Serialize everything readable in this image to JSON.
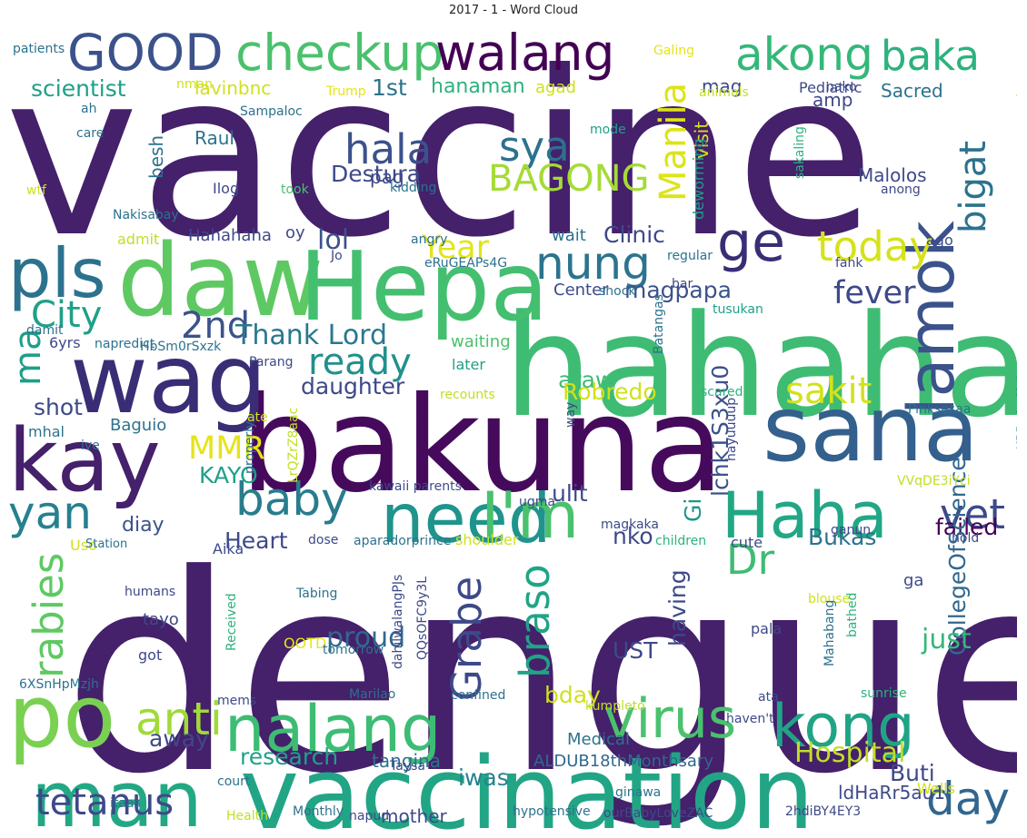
{
  "chart_data": {
    "type": "wordcloud",
    "title": "2017 - 1 - Word Cloud",
    "colormap": "viridis",
    "background": "#ffffff",
    "words": [
      {
        "text": "vaccine",
        "color": "#45206b"
      },
      {
        "text": "dengue",
        "color": "#45206b"
      },
      {
        "text": "hahaha",
        "color": "#3fbc73"
      },
      {
        "text": "bakuna",
        "color": "#460a5d"
      },
      {
        "text": "vaccination",
        "color": "#21a585"
      },
      {
        "text": "daw",
        "color": "#5ec962"
      },
      {
        "text": "Hepa",
        "color": "#44bf70"
      },
      {
        "text": "wag",
        "color": "#3a2d75"
      },
      {
        "text": "sana",
        "color": "#34608d"
      },
      {
        "text": "kay",
        "color": "#45206b"
      },
      {
        "text": "po",
        "color": "#7ad151"
      },
      {
        "text": "man",
        "color": "#22a884"
      },
      {
        "text": "pls",
        "color": "#2c728e"
      },
      {
        "text": "need",
        "color": "#1f948c"
      },
      {
        "text": "I'm",
        "color": "#4ac16d"
      },
      {
        "text": "Haha",
        "color": "#22a785"
      },
      {
        "text": "nalang",
        "color": "#3dbc74"
      },
      {
        "text": "kong",
        "color": "#20a486"
      },
      {
        "text": "virus",
        "color": "#4ac16d"
      },
      {
        "text": "lamok",
        "color": "#3b528b"
      },
      {
        "text": "GOOD",
        "color": "#3b528b"
      },
      {
        "text": "checkup",
        "color": "#4ac16d"
      },
      {
        "text": "walang",
        "color": "#440154"
      },
      {
        "text": "akong",
        "color": "#35b779"
      },
      {
        "text": "baka",
        "color": "#2db27d"
      },
      {
        "text": "ge",
        "color": "#3a2d75"
      },
      {
        "text": "nung",
        "color": "#2c738e"
      },
      {
        "text": "today",
        "color": "#d5e21a"
      },
      {
        "text": "baby",
        "color": "#287c8e"
      },
      {
        "text": "yan",
        "color": "#26818e"
      },
      {
        "text": "anti",
        "color": "#a0da39"
      },
      {
        "text": "tetanus",
        "color": "#3e4989"
      },
      {
        "text": "day",
        "color": "#31668e"
      },
      {
        "text": "rabies",
        "color": "#5ec962"
      },
      {
        "text": "braso",
        "color": "#20a486"
      },
      {
        "text": "Grabe",
        "color": "#3e4989"
      },
      {
        "text": "Dr",
        "color": "#3fbc73"
      },
      {
        "text": "vet",
        "color": "#3e4989"
      },
      {
        "text": "sya",
        "color": "#2c728e"
      },
      {
        "text": "hala",
        "color": "#3b528b"
      },
      {
        "text": "BAGONG",
        "color": "#a5db36"
      },
      {
        "text": "Manila",
        "color": "#dde318"
      },
      {
        "text": "bigat",
        "color": "#2c728e"
      },
      {
        "text": "City",
        "color": "#1fa088"
      },
      {
        "text": "2nd",
        "color": "#3b528b"
      },
      {
        "text": "ma",
        "color": "#1f9e89"
      },
      {
        "text": "ready",
        "color": "#21908d"
      },
      {
        "text": "sakit",
        "color": "#d2e21b"
      },
      {
        "text": "fever",
        "color": "#3e4989"
      },
      {
        "text": "Year",
        "color": "#e3e418"
      },
      {
        "text": "MMR",
        "color": "#e5e419"
      },
      {
        "text": "Hospital",
        "color": "#c0df25"
      },
      {
        "text": "Thank Lord",
        "color": "#2a788e"
      },
      {
        "text": "lol",
        "color": "#3b528b"
      },
      {
        "text": "Clinic",
        "color": "#3e4989"
      },
      {
        "text": "magpapa",
        "color": "#3b528b"
      },
      {
        "text": "araw",
        "color": "#3fbc73"
      },
      {
        "text": "Robredo",
        "color": "#d0e11c"
      },
      {
        "text": "daughter",
        "color": "#3e4989"
      },
      {
        "text": "Heart",
        "color": "#3e4989"
      },
      {
        "text": "Bukas",
        "color": "#2c728e"
      },
      {
        "text": "failed",
        "color": "#440154"
      },
      {
        "text": "CollegeOfScience",
        "color": "#31688e"
      },
      {
        "text": "lchk1S3xu0",
        "color": "#3b528b"
      },
      {
        "text": "ulit",
        "color": "#3e4989"
      },
      {
        "text": "Gi",
        "color": "#1f968b"
      },
      {
        "text": "nko",
        "color": "#3e4989"
      },
      {
        "text": "KAYO",
        "color": "#1fa088"
      },
      {
        "text": "shot",
        "color": "#3e4989"
      },
      {
        "text": "diay",
        "color": "#3b528b"
      },
      {
        "text": "proud",
        "color": "#31688e"
      },
      {
        "text": "just",
        "color": "#35b779"
      },
      {
        "text": "UST",
        "color": "#3e4989"
      },
      {
        "text": "having",
        "color": "#3e4989"
      },
      {
        "text": "bday",
        "color": "#d0e11c"
      },
      {
        "text": "away",
        "color": "#3e4989"
      },
      {
        "text": "research",
        "color": "#1fa188"
      },
      {
        "text": "ALDUB18thMonthsary",
        "color": "#31688e"
      },
      {
        "text": "Medical",
        "color": "#2c728e"
      },
      {
        "text": "Buti",
        "color": "#3e4989"
      },
      {
        "text": "iwas",
        "color": "#26828e"
      },
      {
        "text": "tangina",
        "color": "#2c728e"
      },
      {
        "text": "ldHaRr5au1",
        "color": "#3e4989"
      },
      {
        "text": "mother",
        "color": "#3e4989"
      },
      {
        "text": "scientist",
        "color": "#1fa088"
      },
      {
        "text": "lavinbnc",
        "color": "#d0e11c"
      },
      {
        "text": "1st",
        "color": "#2c728e"
      },
      {
        "text": "hanaman",
        "color": "#2db27d"
      },
      {
        "text": "agad",
        "color": "#cde11d"
      },
      {
        "text": "visit",
        "color": "#dde318"
      },
      {
        "text": "mag",
        "color": "#3e4989"
      },
      {
        "text": "Pediatric",
        "color": "#3e4989"
      },
      {
        "text": "Sacred",
        "color": "#2c728e"
      },
      {
        "text": "amp",
        "color": "#3e4989"
      },
      {
        "text": "Raul",
        "color": "#2c728e"
      },
      {
        "text": "besh",
        "color": "#2c728e"
      },
      {
        "text": "Destura",
        "color": "#3e4989"
      },
      {
        "text": "pag",
        "color": "#3e4989"
      },
      {
        "text": "Malolos",
        "color": "#3e4989"
      },
      {
        "text": "deworming",
        "color": "#1f9e89"
      },
      {
        "text": "Hahahaha",
        "color": "#3e4989"
      },
      {
        "text": "oy",
        "color": "#3e4989"
      },
      {
        "text": "wait",
        "color": "#2c728e"
      },
      {
        "text": "admit",
        "color": "#c0df25"
      },
      {
        "text": "waiting",
        "color": "#4ac16d"
      },
      {
        "text": "later",
        "color": "#1fa088"
      },
      {
        "text": "Center",
        "color": "#3e4989"
      },
      {
        "text": "shoulder",
        "color": "#d0e11c"
      },
      {
        "text": "Uso",
        "color": "#d0e11c"
      },
      {
        "text": "Station",
        "color": "#2c728e"
      },
      {
        "text": "Aika",
        "color": "#3e4989"
      },
      {
        "text": "dose",
        "color": "#3e4989"
      },
      {
        "text": "aparadorprince",
        "color": "#2c728e"
      },
      {
        "text": "children",
        "color": "#2db27d"
      },
      {
        "text": "cute",
        "color": "#3e4989"
      },
      {
        "text": "magkaka",
        "color": "#3e4989"
      },
      {
        "text": "Baguio",
        "color": "#2c728e"
      },
      {
        "text": "mhal",
        "color": "#2c728e"
      },
      {
        "text": "patients",
        "color": "#2c728e"
      },
      {
        "text": "nman",
        "color": "#d0e11c"
      },
      {
        "text": "Trump",
        "color": "#e5e419"
      },
      {
        "text": "Galing",
        "color": "#e5e419"
      },
      {
        "text": "animals",
        "color": "#c0df25"
      },
      {
        "text": "nako",
        "color": "#3e4989"
      },
      {
        "text": "dpat",
        "color": "#c0df25"
      },
      {
        "text": "ah",
        "color": "#2c728e"
      },
      {
        "text": "Sampaloc",
        "color": "#2c728e"
      },
      {
        "text": "care",
        "color": "#2c728e"
      },
      {
        "text": "mode",
        "color": "#1fa088"
      },
      {
        "text": "sakaling",
        "color": "#2db27d"
      },
      {
        "text": "wtf",
        "color": "#d0e11c"
      },
      {
        "text": "Ilog",
        "color": "#3e4989"
      },
      {
        "text": "took",
        "color": "#4ac16d"
      },
      {
        "text": "kidding",
        "color": "#2c728e"
      },
      {
        "text": "anong",
        "color": "#3e4989"
      },
      {
        "text": "Nakisabay",
        "color": "#2c728e"
      },
      {
        "text": "angry",
        "color": "#2c728e"
      },
      {
        "text": "Jo",
        "color": "#3e4989"
      },
      {
        "text": "eRuGEAPs4G",
        "color": "#2c728e"
      },
      {
        "text": "regular",
        "color": "#2c728e"
      },
      {
        "text": "ago",
        "color": "#3e4989"
      },
      {
        "text": "fahk",
        "color": "#3e4989"
      },
      {
        "text": "shock",
        "color": "#2c728e"
      },
      {
        "text": "bar",
        "color": "#3e4989"
      },
      {
        "text": "tusukan",
        "color": "#1fa088"
      },
      {
        "text": "Batangas",
        "color": "#2c728e"
      },
      {
        "text": "damit",
        "color": "#2c728e"
      },
      {
        "text": "6yrs",
        "color": "#3e4989"
      },
      {
        "text": "napredict",
        "color": "#2c728e"
      },
      {
        "text": "HbSm0rSxzk",
        "color": "#2c728e"
      },
      {
        "text": "Parang",
        "color": "#3e4989"
      },
      {
        "text": "recounts",
        "color": "#c0df25"
      },
      {
        "text": "scared",
        "color": "#2db27d"
      },
      {
        "text": "ive",
        "color": "#2c728e"
      },
      {
        "text": "ate",
        "color": "#d0e11c"
      },
      {
        "text": "LrQZrZ8aac",
        "color": "#c0df25"
      },
      {
        "text": "properly",
        "color": "#2c728e"
      },
      {
        "text": "way",
        "color": "#3e4989"
      },
      {
        "text": "hayuuuup",
        "color": "#3e4989"
      },
      {
        "text": "Pinksesaa",
        "color": "#2c728e"
      },
      {
        "text": "mKBBwkoSbO",
        "color": "#2c728e"
      },
      {
        "text": "VVqDE3iYci",
        "color": "#c0df25"
      },
      {
        "text": "kawaii parents",
        "color": "#3e4989"
      },
      {
        "text": "ugma",
        "color": "#3e4989"
      },
      {
        "text": "hold",
        "color": "#3e4989"
      },
      {
        "text": "ganun",
        "color": "#3e4989"
      },
      {
        "text": "blouse",
        "color": "#d0e11c"
      },
      {
        "text": "humans",
        "color": "#3e4989"
      },
      {
        "text": "Tabing",
        "color": "#2c728e"
      },
      {
        "text": "ga",
        "color": "#3e4989"
      },
      {
        "text": "tayo",
        "color": "#3e4989"
      },
      {
        "text": "Received",
        "color": "#2db27d"
      },
      {
        "text": "QQsOFC9y3L",
        "color": "#3e4989"
      },
      {
        "text": "dahilwalangPJs",
        "color": "#3e4989"
      },
      {
        "text": "Mahabang",
        "color": "#2c728e"
      },
      {
        "text": "bathed",
        "color": "#2db27d"
      },
      {
        "text": "pala",
        "color": "#3e4989"
      },
      {
        "text": "got",
        "color": "#3e4989"
      },
      {
        "text": "OOTD",
        "color": "#e5e419"
      },
      {
        "text": "tomorrow",
        "color": "#2c728e"
      },
      {
        "text": "6XSnHpMzjh",
        "color": "#2c728e"
      },
      {
        "text": "mems",
        "color": "#3e4989"
      },
      {
        "text": "Marilao",
        "color": "#2c728e"
      },
      {
        "text": "confined",
        "color": "#2c728e"
      },
      {
        "text": "ata",
        "color": "#3e4989"
      },
      {
        "text": "sunrise",
        "color": "#2db27d"
      },
      {
        "text": "kumpleto",
        "color": "#c0df25"
      },
      {
        "text": "haven't",
        "color": "#3e4989"
      },
      {
        "text": "Taysa",
        "color": "#3e4989"
      },
      {
        "text": "court",
        "color": "#2c728e"
      },
      {
        "text": "ginawa",
        "color": "#2c728e"
      },
      {
        "text": "Wells",
        "color": "#d0e11c"
      },
      {
        "text": "itaas",
        "color": "#2c728e"
      },
      {
        "text": "Health",
        "color": "#c0df25"
      },
      {
        "text": "Monthly",
        "color": "#2c728e"
      },
      {
        "text": "napud",
        "color": "#3e4989"
      },
      {
        "text": "hypotensive",
        "color": "#2c728e"
      },
      {
        "text": "ourBabyLoveZAC",
        "color": "#3e4989"
      },
      {
        "text": "2hdiBY4EY3",
        "color": "#3e4989"
      }
    ]
  }
}
